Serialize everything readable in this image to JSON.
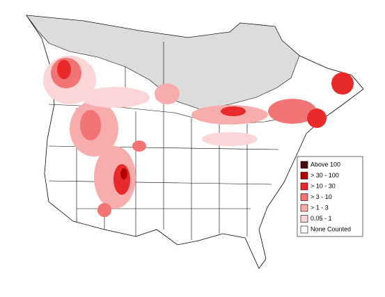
{
  "legend": {
    "items": [
      {
        "label": "Above 100",
        "color": "#4a0c0c"
      },
      {
        "label": "> 30 - 100",
        "color": "#b40000"
      },
      {
        "label": "> 10 - 30",
        "color": "#e92a2a"
      },
      {
        "label": "> 3 - 10",
        "color": "#f27474"
      },
      {
        "label": "> 1 - 3",
        "color": "#f8acac"
      },
      {
        "label": "0.05 - 1",
        "color": "#fcd6d6"
      },
      {
        "label": "None Counted",
        "color": "#ffffff"
      }
    ]
  }
}
